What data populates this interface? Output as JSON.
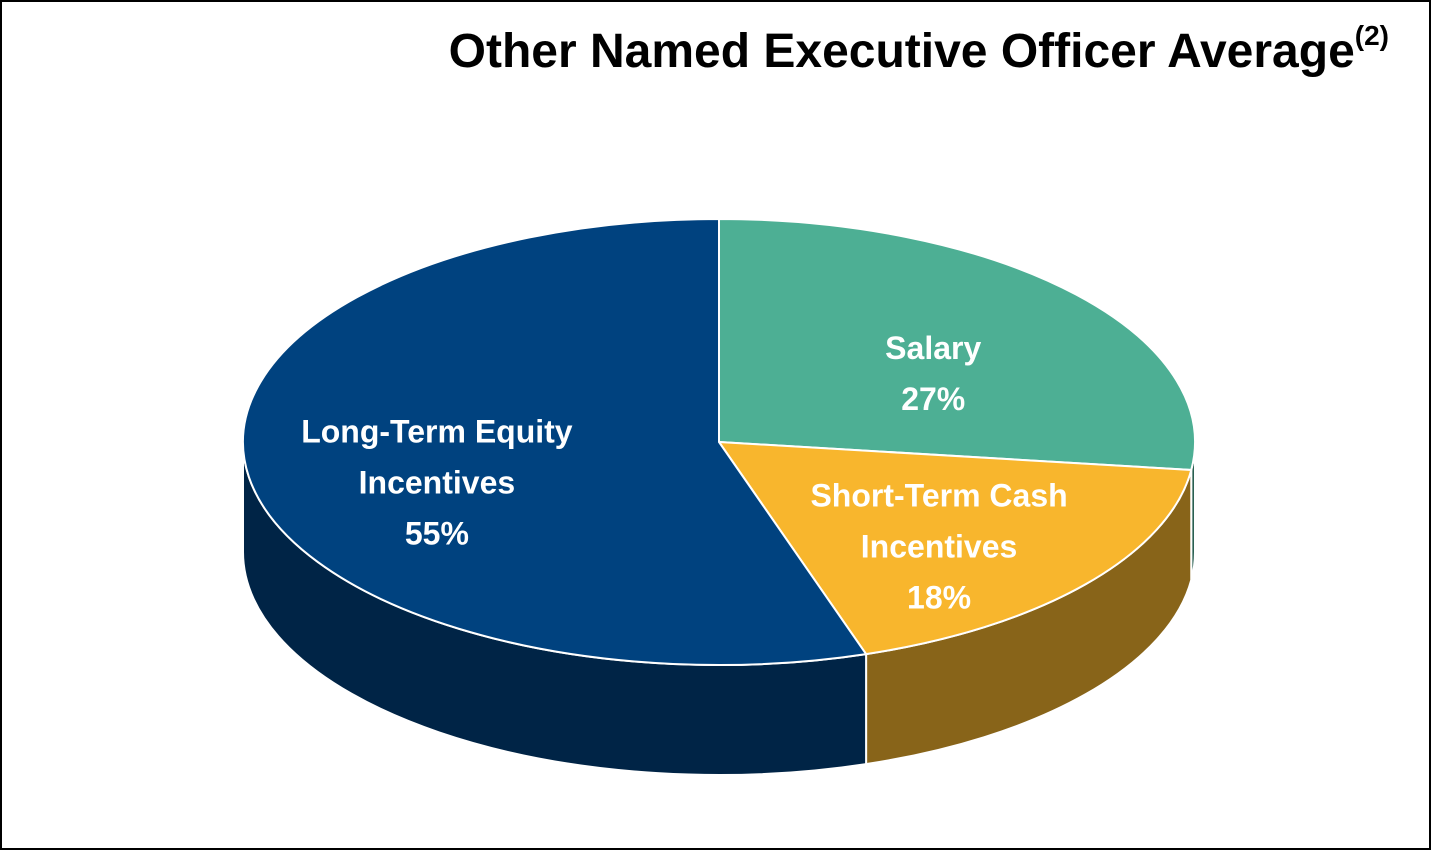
{
  "chart_data": {
    "type": "pie3d",
    "title": "Other Named Executive Officer Average",
    "title_note": "(2)",
    "categories": [
      "Salary",
      "Short-Term Cash Incentives",
      "Long-Term Equity Incentives"
    ],
    "values": [
      27,
      18,
      55
    ],
    "value_labels": [
      "27%",
      "18%",
      "55%"
    ],
    "colors": [
      "#4daf94",
      "#f8b62d",
      "#00427f"
    ]
  }
}
